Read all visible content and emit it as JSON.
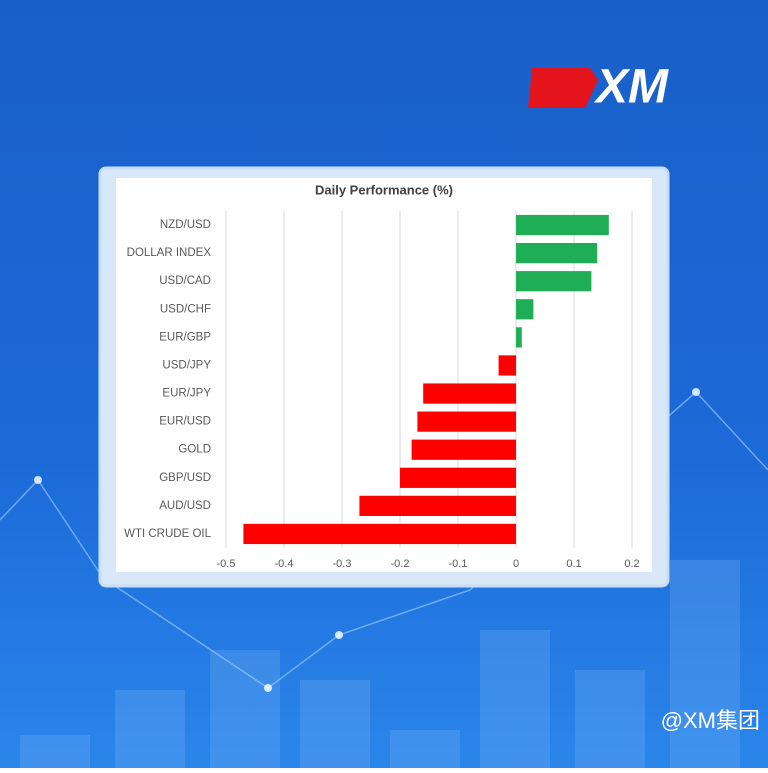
{
  "brand": "XM",
  "watermark": "@XM集团",
  "chart_data": {
    "type": "hbar",
    "title": "Daily Performance (%)",
    "categories": [
      "NZD/USD",
      "DOLLAR INDEX",
      "USD/CAD",
      "USD/CHF",
      "EUR/GBP",
      "USD/JPY",
      "EUR/JPY",
      "EUR/USD",
      "GOLD",
      "GBP/USD",
      "AUD/USD",
      "WTI CRUDE OIL"
    ],
    "values": [
      0.16,
      0.14,
      0.13,
      0.03,
      0.01,
      -0.03,
      -0.16,
      -0.17,
      -0.18,
      -0.2,
      -0.27,
      -0.47
    ],
    "positive_color": "#1fad55",
    "negative_color": "#ff0000",
    "xlim": [
      -0.5,
      0.2
    ],
    "xticks": [
      -0.5,
      -0.4,
      -0.3,
      -0.2,
      -0.1,
      0,
      0.1,
      0.2
    ],
    "grid": true
  }
}
